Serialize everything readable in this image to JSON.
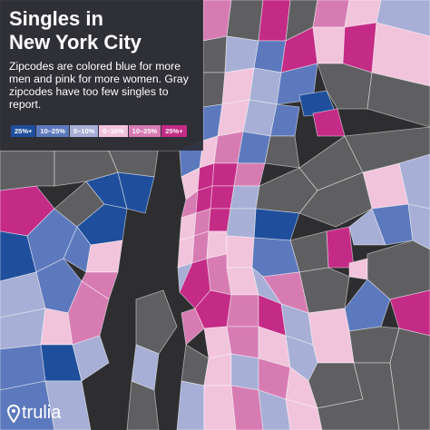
{
  "map": {
    "title_line1": "Singles in",
    "title_line2": "New York City",
    "subtitle": "Zipcodes are colored blue for more men and pink for more women. Gray zipcodes have too few singles to report."
  },
  "legend": [
    {
      "label": "25%+",
      "color": "#1f4f9c",
      "meaning": "more men"
    },
    {
      "label": "10–25%",
      "color": "#5d79bd",
      "meaning": "more men"
    },
    {
      "label": "0–10%",
      "color": "#a7afd6",
      "meaning": "more men"
    },
    {
      "label": "0–10%",
      "color": "#f2c4dc",
      "meaning": "more women"
    },
    {
      "label": "10–25%",
      "color": "#d77cb3",
      "meaning": "more women"
    },
    {
      "label": "25%+",
      "color": "#c42b86",
      "meaning": "more women"
    }
  ],
  "colors": {
    "water": "#2e2e30",
    "no_data": "#5f5f61",
    "background_panel": "#28282e"
  },
  "brand": {
    "logo_text": "trulia",
    "logo_icon": "map-pin-icon"
  }
}
